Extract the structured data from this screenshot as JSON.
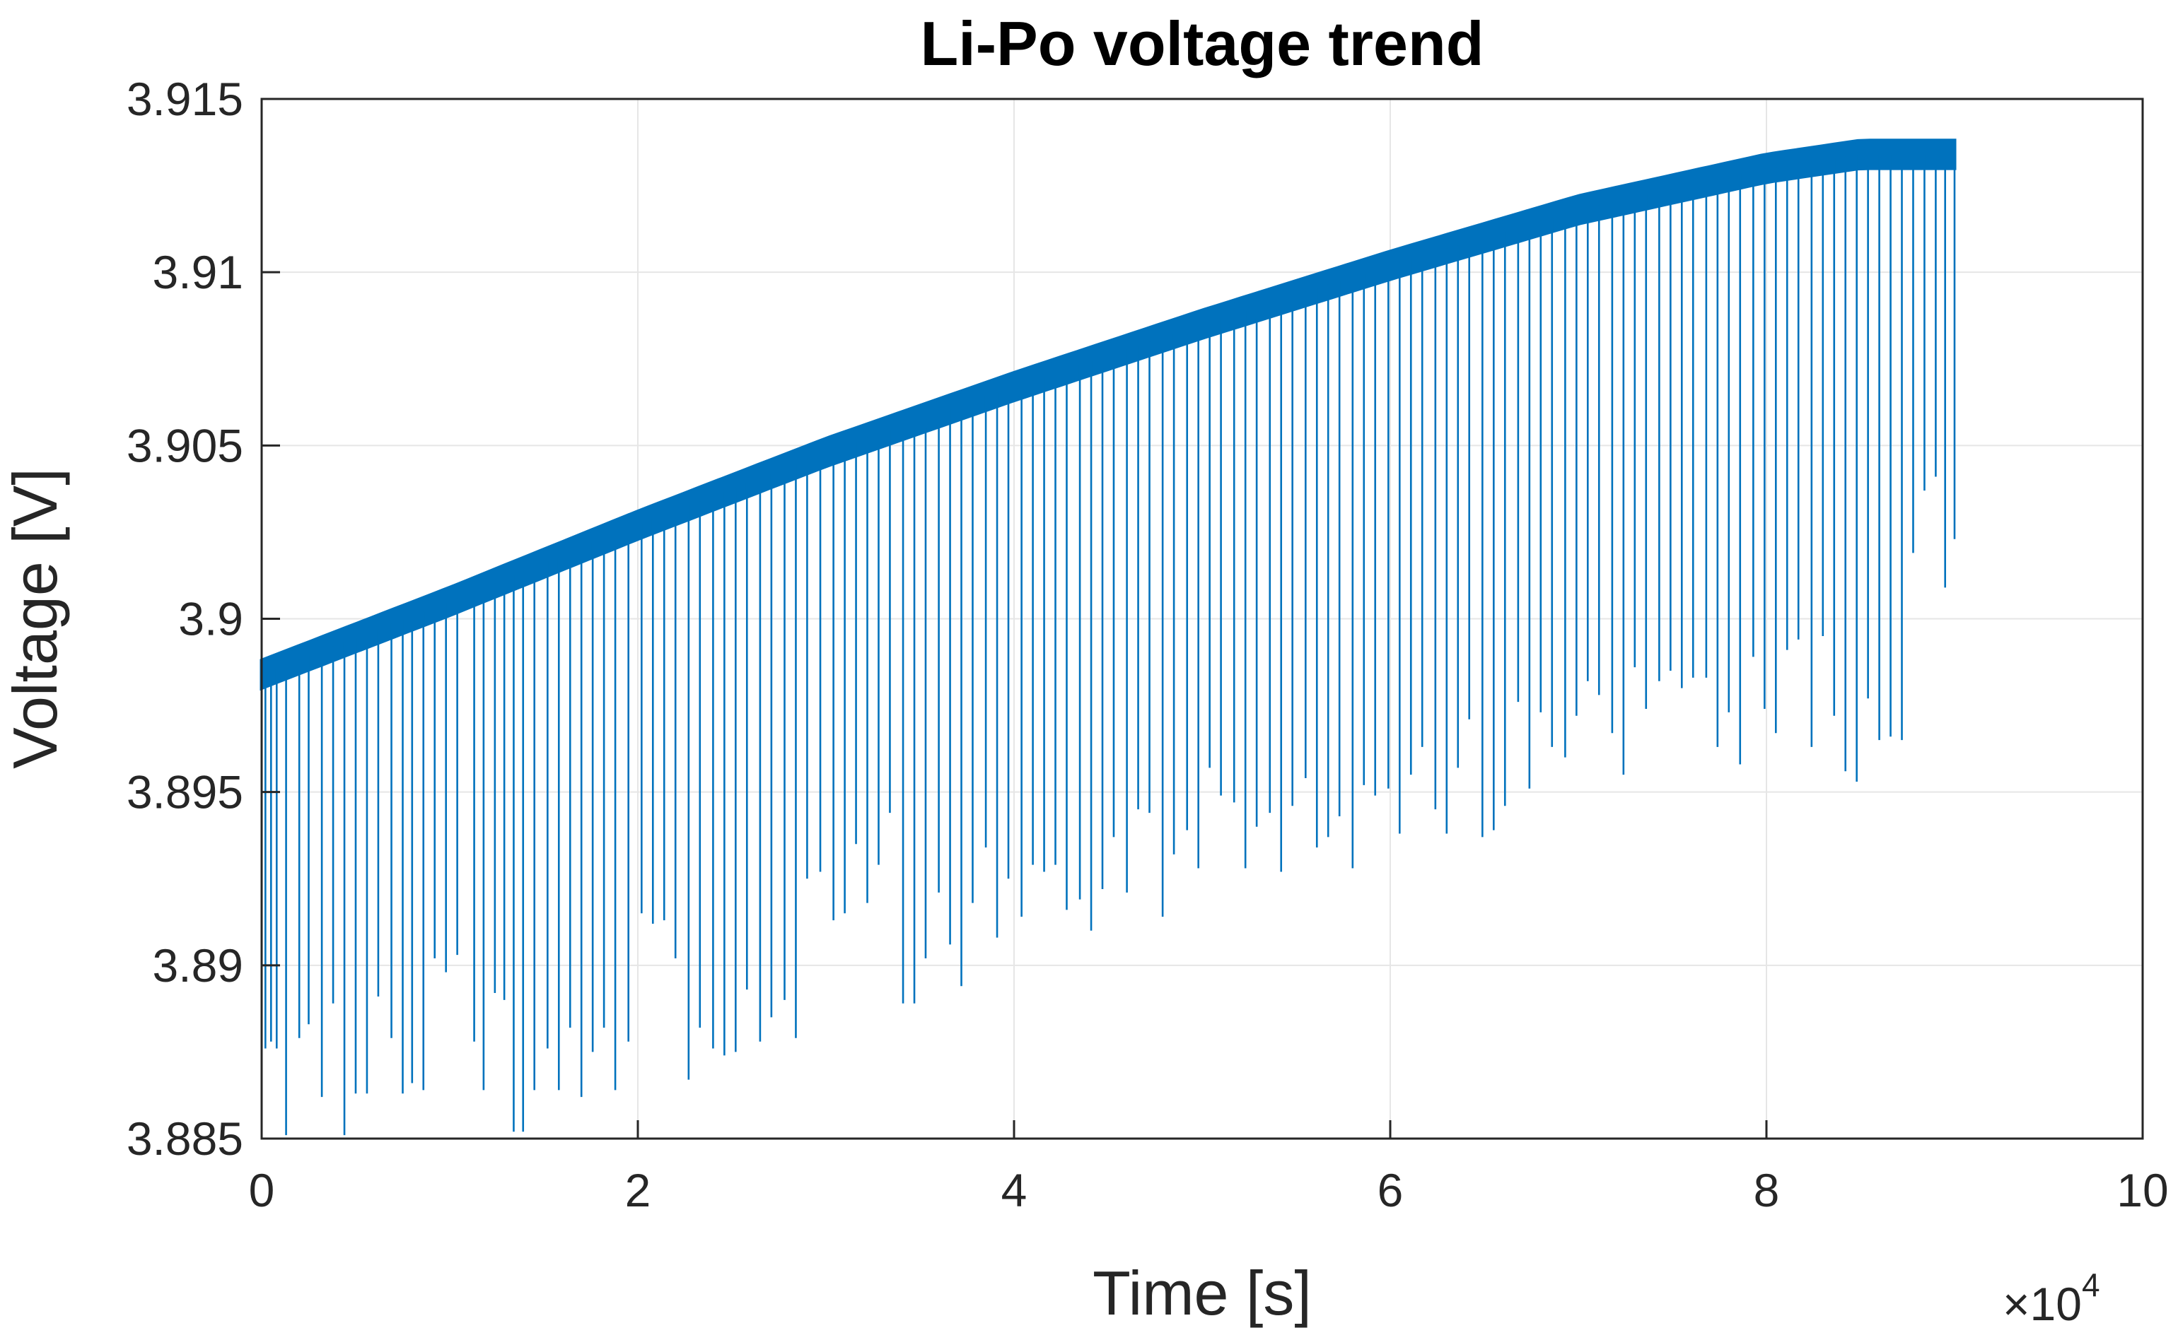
{
  "chart_data": {
    "type": "line",
    "title": "Li-Po voltage trend",
    "xlabel": "Time [s]",
    "ylabel": "Voltage [V]",
    "x_exponent_label": "×10",
    "x_exponent_power": "4",
    "xlim": [
      0,
      10
    ],
    "ylim": [
      3.885,
      3.915
    ],
    "x_ticks": [
      0,
      2,
      4,
      6,
      8,
      10
    ],
    "x_tick_labels": [
      "0",
      "2",
      "4",
      "6",
      "8",
      "10"
    ],
    "y_ticks": [
      3.885,
      3.89,
      3.895,
      3.9,
      3.905,
      3.91,
      3.915
    ],
    "y_tick_labels": [
      "3.885",
      "3.89",
      "3.895",
      "3.9",
      "3.905",
      "3.91",
      "3.915"
    ],
    "grid": true,
    "series": [
      {
        "name": "Voltage",
        "color": "#0072BD",
        "baseline_x": [
          0,
          1,
          2,
          3,
          4,
          5,
          6,
          7,
          8,
          8.5,
          9.0
        ],
        "baseline_y": [
          3.8984,
          3.9005,
          3.9027,
          3.9048,
          3.9067,
          3.9085,
          3.9102,
          3.9118,
          3.913,
          3.9134,
          3.9134
        ],
        "band_width": 0.0008,
        "spike_x": [
          0.02,
          0.05,
          0.08,
          0.13,
          0.2,
          0.25,
          0.32,
          0.38,
          0.44,
          0.5,
          0.56,
          0.62,
          0.69,
          0.75,
          0.8,
          0.86,
          0.92,
          0.98,
          1.04,
          1.13,
          1.18,
          1.24,
          1.29,
          1.34,
          1.39,
          1.45,
          1.52,
          1.58,
          1.64,
          1.7,
          1.76,
          1.82,
          1.88,
          1.95,
          2.02,
          2.08,
          2.14,
          2.2,
          2.27,
          2.33,
          2.4,
          2.46,
          2.52,
          2.58,
          2.65,
          2.71,
          2.78,
          2.84,
          2.9,
          2.97,
          3.04,
          3.1,
          3.16,
          3.22,
          3.28,
          3.34,
          3.41,
          3.47,
          3.53,
          3.6,
          3.66,
          3.72,
          3.78,
          3.85,
          3.91,
          3.97,
          4.04,
          4.1,
          4.16,
          4.22,
          4.28,
          4.35,
          4.41,
          4.47,
          4.53,
          4.6,
          4.66,
          4.72,
          4.79,
          4.85,
          4.92,
          4.98,
          5.04,
          5.1,
          5.17,
          5.23,
          5.29,
          5.36,
          5.42,
          5.48,
          5.55,
          5.61,
          5.67,
          5.73,
          5.8,
          5.86,
          5.92,
          5.99,
          6.05,
          6.11,
          6.17,
          6.24,
          6.3,
          6.36,
          6.42,
          6.49,
          6.55,
          6.61,
          6.68,
          6.74,
          6.8,
          6.86,
          6.93,
          6.99,
          7.05,
          7.11,
          7.18,
          7.24,
          7.3,
          7.36,
          7.43,
          7.49,
          7.55,
          7.61,
          7.68,
          7.74,
          7.8,
          7.86,
          7.93,
          7.99,
          8.05,
          8.11,
          8.17,
          8.24,
          8.3,
          8.36,
          8.42,
          8.48,
          8.54,
          8.6,
          8.66,
          8.72,
          8.78,
          8.84,
          8.9,
          8.95,
          9.0
        ],
        "spike_y": [
          3.8876,
          3.8878,
          3.8876,
          3.8851,
          3.8879,
          3.8883,
          3.8862,
          3.8889,
          3.8851,
          3.8863,
          3.8863,
          3.8891,
          3.8879,
          3.8863,
          3.8866,
          3.8864,
          3.8902,
          3.8898,
          3.8903,
          3.8878,
          3.8864,
          3.8892,
          3.889,
          3.8852,
          3.8852,
          3.8864,
          3.8876,
          3.8864,
          3.8882,
          3.8862,
          3.8875,
          3.8882,
          3.8864,
          3.8878,
          3.8915,
          3.8912,
          3.8913,
          3.8902,
          3.8867,
          3.8882,
          3.8876,
          3.8874,
          3.8875,
          3.8893,
          3.8878,
          3.8885,
          3.889,
          3.8879,
          3.8925,
          3.8927,
          3.8913,
          3.8915,
          3.8935,
          3.8918,
          3.8929,
          3.8944,
          3.8889,
          3.8889,
          3.8902,
          3.8921,
          3.8906,
          3.8894,
          3.8918,
          3.8934,
          3.8908,
          3.8925,
          3.8914,
          3.8929,
          3.8927,
          3.8929,
          3.8916,
          3.8919,
          3.891,
          3.8922,
          3.8937,
          3.8921,
          3.8945,
          3.8944,
          3.8914,
          3.8932,
          3.8939,
          3.8928,
          3.8957,
          3.8949,
          3.8947,
          3.8928,
          3.894,
          3.8944,
          3.8927,
          3.8946,
          3.8954,
          3.8934,
          3.8937,
          3.8943,
          3.8928,
          3.8952,
          3.8949,
          3.8951,
          3.8938,
          3.8955,
          3.8963,
          3.8945,
          3.8938,
          3.8957,
          3.8971,
          3.8937,
          3.8939,
          3.8946,
          3.8976,
          3.8951,
          3.8973,
          3.8963,
          3.896,
          3.8972,
          3.8982,
          3.8978,
          3.8967,
          3.8955,
          3.8986,
          3.8974,
          3.8982,
          3.8985,
          3.898,
          3.8983,
          3.8983,
          3.8963,
          3.8973,
          3.8958,
          3.8989,
          3.8974,
          3.8967,
          3.8991,
          3.8994,
          3.8963,
          3.8995,
          3.8972,
          3.8956,
          3.8953,
          3.8977,
          3.8965,
          3.8966,
          3.8965,
          3.9019,
          3.9037,
          3.9041,
          3.9009,
          3.9023
        ]
      }
    ]
  }
}
